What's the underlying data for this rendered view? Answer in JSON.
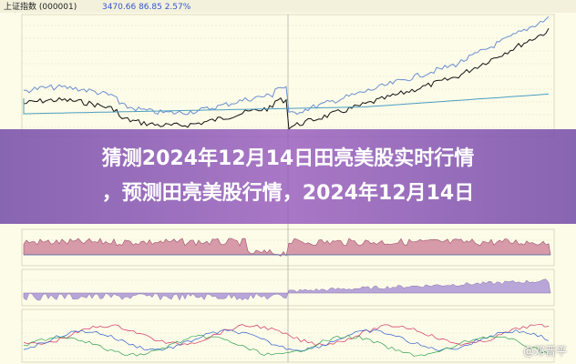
{
  "header": {
    "index_name": "上证指数 (000001)",
    "price_info": "3470.66  86.85  2.57%"
  },
  "overlay": {
    "title_lines": [
      "猜测2024年12月14日田亮美股实时行情",
      "，预测田亮美股行情，2024年12月14日"
    ]
  },
  "watermark": "@邓晋平"
}
